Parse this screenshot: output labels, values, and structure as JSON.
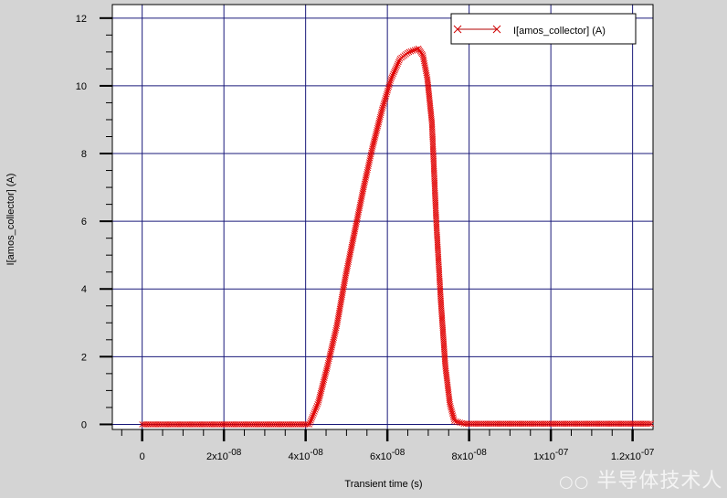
{
  "chart_data": {
    "type": "scatter",
    "title": "",
    "xlabel": "Transient time (s)",
    "ylabel": "I[amos_collector] (A)",
    "xlim": [
      -7.3e-09,
      1.25e-07
    ],
    "ylim": [
      -0.15,
      12.4
    ],
    "x_ticks": [
      {
        "v": 0,
        "mant": "0",
        "exp": ""
      },
      {
        "v": 2e-08,
        "mant": "2x10",
        "exp": "-08"
      },
      {
        "v": 4e-08,
        "mant": "4x10",
        "exp": "-08"
      },
      {
        "v": 6e-08,
        "mant": "6x10",
        "exp": "-08"
      },
      {
        "v": 8e-08,
        "mant": "8x10",
        "exp": "-08"
      },
      {
        "v": 1e-07,
        "mant": "1x10",
        "exp": "-07"
      },
      {
        "v": 1.2e-07,
        "mant": "1.2x10",
        "exp": "-07"
      }
    ],
    "y_ticks": [
      0,
      2,
      4,
      6,
      8,
      10,
      12
    ],
    "grid": true,
    "legend": {
      "position": "top-right",
      "entries": [
        "I[amos_collector] (A)"
      ]
    },
    "series": [
      {
        "name": "I[amos_collector] (A)",
        "color": "#e00000",
        "marker": "x",
        "x": [
          0,
          4.09e-08,
          4.31e-08,
          4.53e-08,
          4.76e-08,
          4.98e-08,
          5.2e-08,
          5.42e-08,
          5.64e-08,
          5.87e-08,
          6.09e-08,
          6.31e-08,
          6.53e-08,
          6.76e-08,
          6.87e-08,
          6.98e-08,
          7.09e-08,
          7.2e-08,
          7.31e-08,
          7.42e-08,
          7.53e-08,
          7.64e-08,
          7.87e-08,
          1.25e-07
        ],
        "y": [
          0,
          0,
          0.65,
          1.7,
          2.9,
          4.4,
          5.7,
          7.0,
          8.2,
          9.3,
          10.2,
          10.8,
          11.0,
          11.1,
          10.9,
          10.2,
          8.9,
          5.9,
          3.6,
          1.7,
          0.6,
          0.1,
          0.02,
          0.02
        ]
      }
    ]
  },
  "watermark": "半导体技术人"
}
